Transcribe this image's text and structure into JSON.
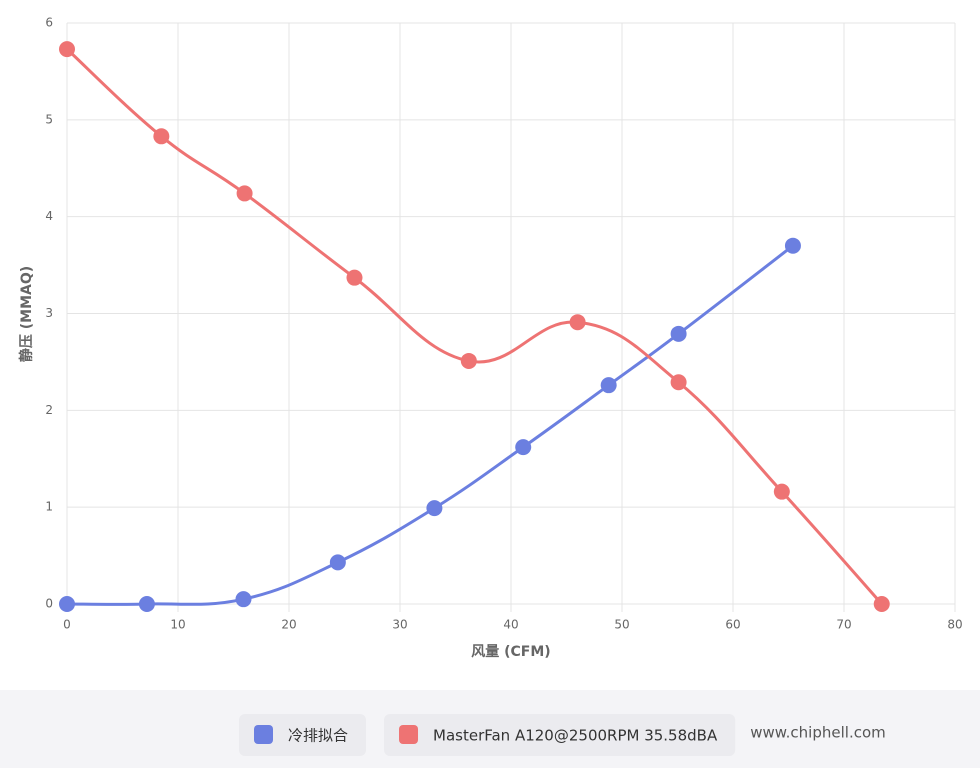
{
  "chart_data": {
    "type": "line",
    "x_label": "风量 (CFM)",
    "y_label": "静压 (MMAQ)",
    "xlim": [
      0,
      80
    ],
    "xticks": [
      0,
      10,
      20,
      30,
      40,
      50,
      60,
      70,
      80
    ],
    "ylim": [
      0,
      6
    ],
    "yticks": [
      0,
      1,
      2,
      3,
      4,
      5,
      6
    ],
    "grid": true,
    "series": [
      {
        "name": "冷排拟合",
        "color": "#6b7fe0",
        "x": [
          0,
          7.2,
          15.9,
          24.4,
          33.1,
          41.1,
          48.8,
          55.1,
          65.4
        ],
        "values": [
          0,
          0,
          0.05,
          0.43,
          0.99,
          1.62,
          2.26,
          2.79,
          3.7
        ]
      },
      {
        "name": "MasterFan A120@2500RPM 35.58dBA",
        "color": "#ee7373",
        "x": [
          0,
          8.5,
          16.0,
          25.9,
          36.2,
          46.0,
          55.1,
          64.4,
          73.4
        ],
        "values": [
          5.73,
          4.83,
          4.24,
          3.37,
          2.51,
          2.91,
          2.29,
          1.16,
          0
        ]
      }
    ]
  },
  "watermark": "www.chiphell.com"
}
